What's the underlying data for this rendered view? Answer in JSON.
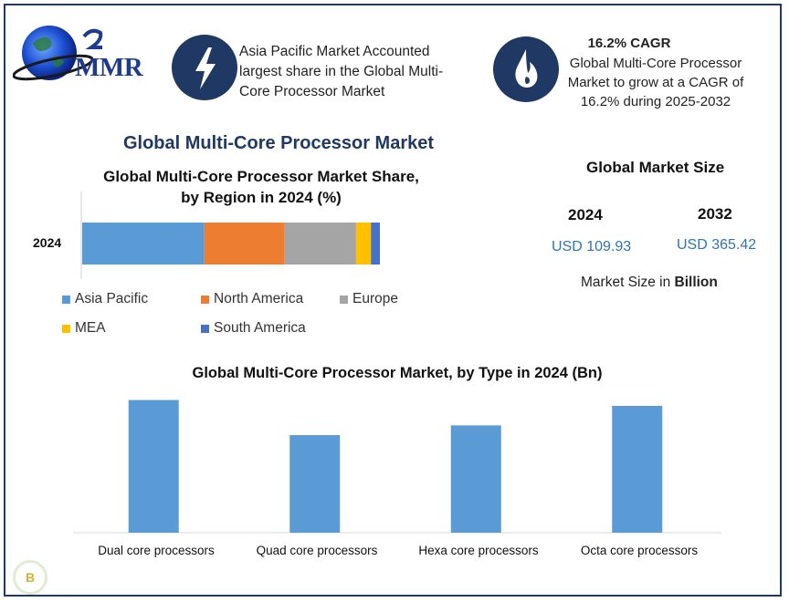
{
  "logo": {
    "text": "MMR",
    "icon": "globe-logo-icon"
  },
  "info_boxes": [
    {
      "icon": "lightning-icon",
      "text": "Asia Pacific Market Accounted largest share in the Global Multi-Core Processor Market"
    },
    {
      "icon": "flame-icon",
      "heading": "16.2% CAGR",
      "text": "Global Multi-Core Processor Market to grow at a CAGR of 16.2% during 2025-2032"
    }
  ],
  "main_title": "Global Multi-Core Processor Market",
  "market_size": {
    "title": "Global Market Size",
    "years": [
      "2024",
      "2032"
    ],
    "values": [
      "USD 109.93",
      "USD 365.42"
    ],
    "note_prefix": "Market Size in ",
    "note_bold": "Billion"
  },
  "colors": {
    "accent": "#1f3864",
    "asia_pacific": "#5b9bd5",
    "north_america": "#ed7d31",
    "europe": "#a5a5a5",
    "mea": "#ffc000",
    "south_america": "#4472c4"
  },
  "chart_data": [
    {
      "type": "bar",
      "orientation": "horizontal-stacked",
      "title_line1": "Global Multi-Core Processor Market Share,",
      "title_line2": "by Region in 2024 (%)",
      "categories": [
        "2024"
      ],
      "series": [
        {
          "name": "Asia Pacific",
          "values": [
            41
          ],
          "color": "#5b9bd5"
        },
        {
          "name": "North America",
          "values": [
            27
          ],
          "color": "#ed7d31"
        },
        {
          "name": "Europe",
          "values": [
            24
          ],
          "color": "#a5a5a5"
        },
        {
          "name": "MEA",
          "values": [
            5
          ],
          "color": "#ffc000"
        },
        {
          "name": "South America",
          "values": [
            3
          ],
          "color": "#4472c4"
        }
      ],
      "legend_position": "bottom",
      "total": 100
    },
    {
      "type": "bar",
      "title": "Global Multi-Core Processor Market, by Type in 2024 (Bn)",
      "categories": [
        "Dual core processors",
        "Quad core processors",
        "Hexa core processors",
        "Octa core processors"
      ],
      "values": [
        34,
        25,
        27.5,
        32.5
      ],
      "color": "#5b9bd5",
      "ylim": [
        0,
        36
      ],
      "grid": false
    }
  ]
}
